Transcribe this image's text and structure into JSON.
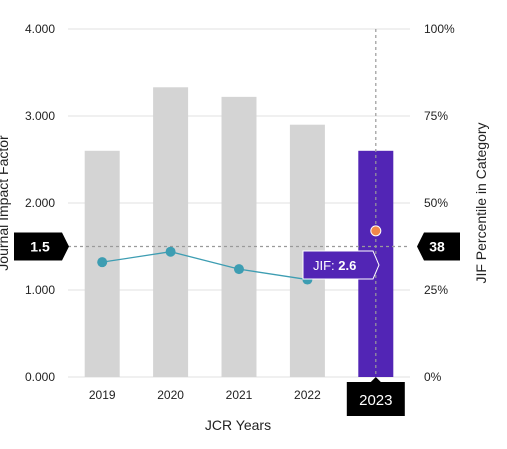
{
  "chart_data": {
    "type": "bar",
    "categories": [
      "2019",
      "2020",
      "2021",
      "2022",
      "2023"
    ],
    "xlabel": "JCR Years",
    "ylabel_left": "Journal Impact Factor",
    "ylabel_right": "JIF Percentile in Category",
    "ylim_left": [
      0,
      4
    ],
    "ylim_right": [
      0,
      100
    ],
    "left_ticks": [
      "0.000",
      "1.000",
      "2.000",
      "3.000",
      "4.000"
    ],
    "right_ticks": [
      "0%",
      "25%",
      "50%",
      "75%",
      "100%"
    ],
    "grid": "horizontal",
    "series": [
      {
        "type": "bar",
        "axis": "left",
        "values": [
          2.6,
          3.33,
          3.22,
          2.9,
          2.6
        ]
      },
      {
        "type": "line",
        "axis": "right",
        "values": [
          33,
          36,
          31,
          28,
          42
        ]
      }
    ],
    "highlight": {
      "category": "2023",
      "bar_color": "#5225b5",
      "point_color": "#f2884b",
      "tooltip_label": "JIF:",
      "tooltip_value": "2.6"
    },
    "crosshair": {
      "left_label": "1.5",
      "left_value": 1.5,
      "right_label": "38"
    },
    "colors": {
      "bar": "#d4d4d4",
      "line": "#3d9db2",
      "point": "#3d9db2",
      "grid": "#e0e0e0",
      "tooltip": "#5225b5",
      "label_bg": "#000000"
    }
  }
}
